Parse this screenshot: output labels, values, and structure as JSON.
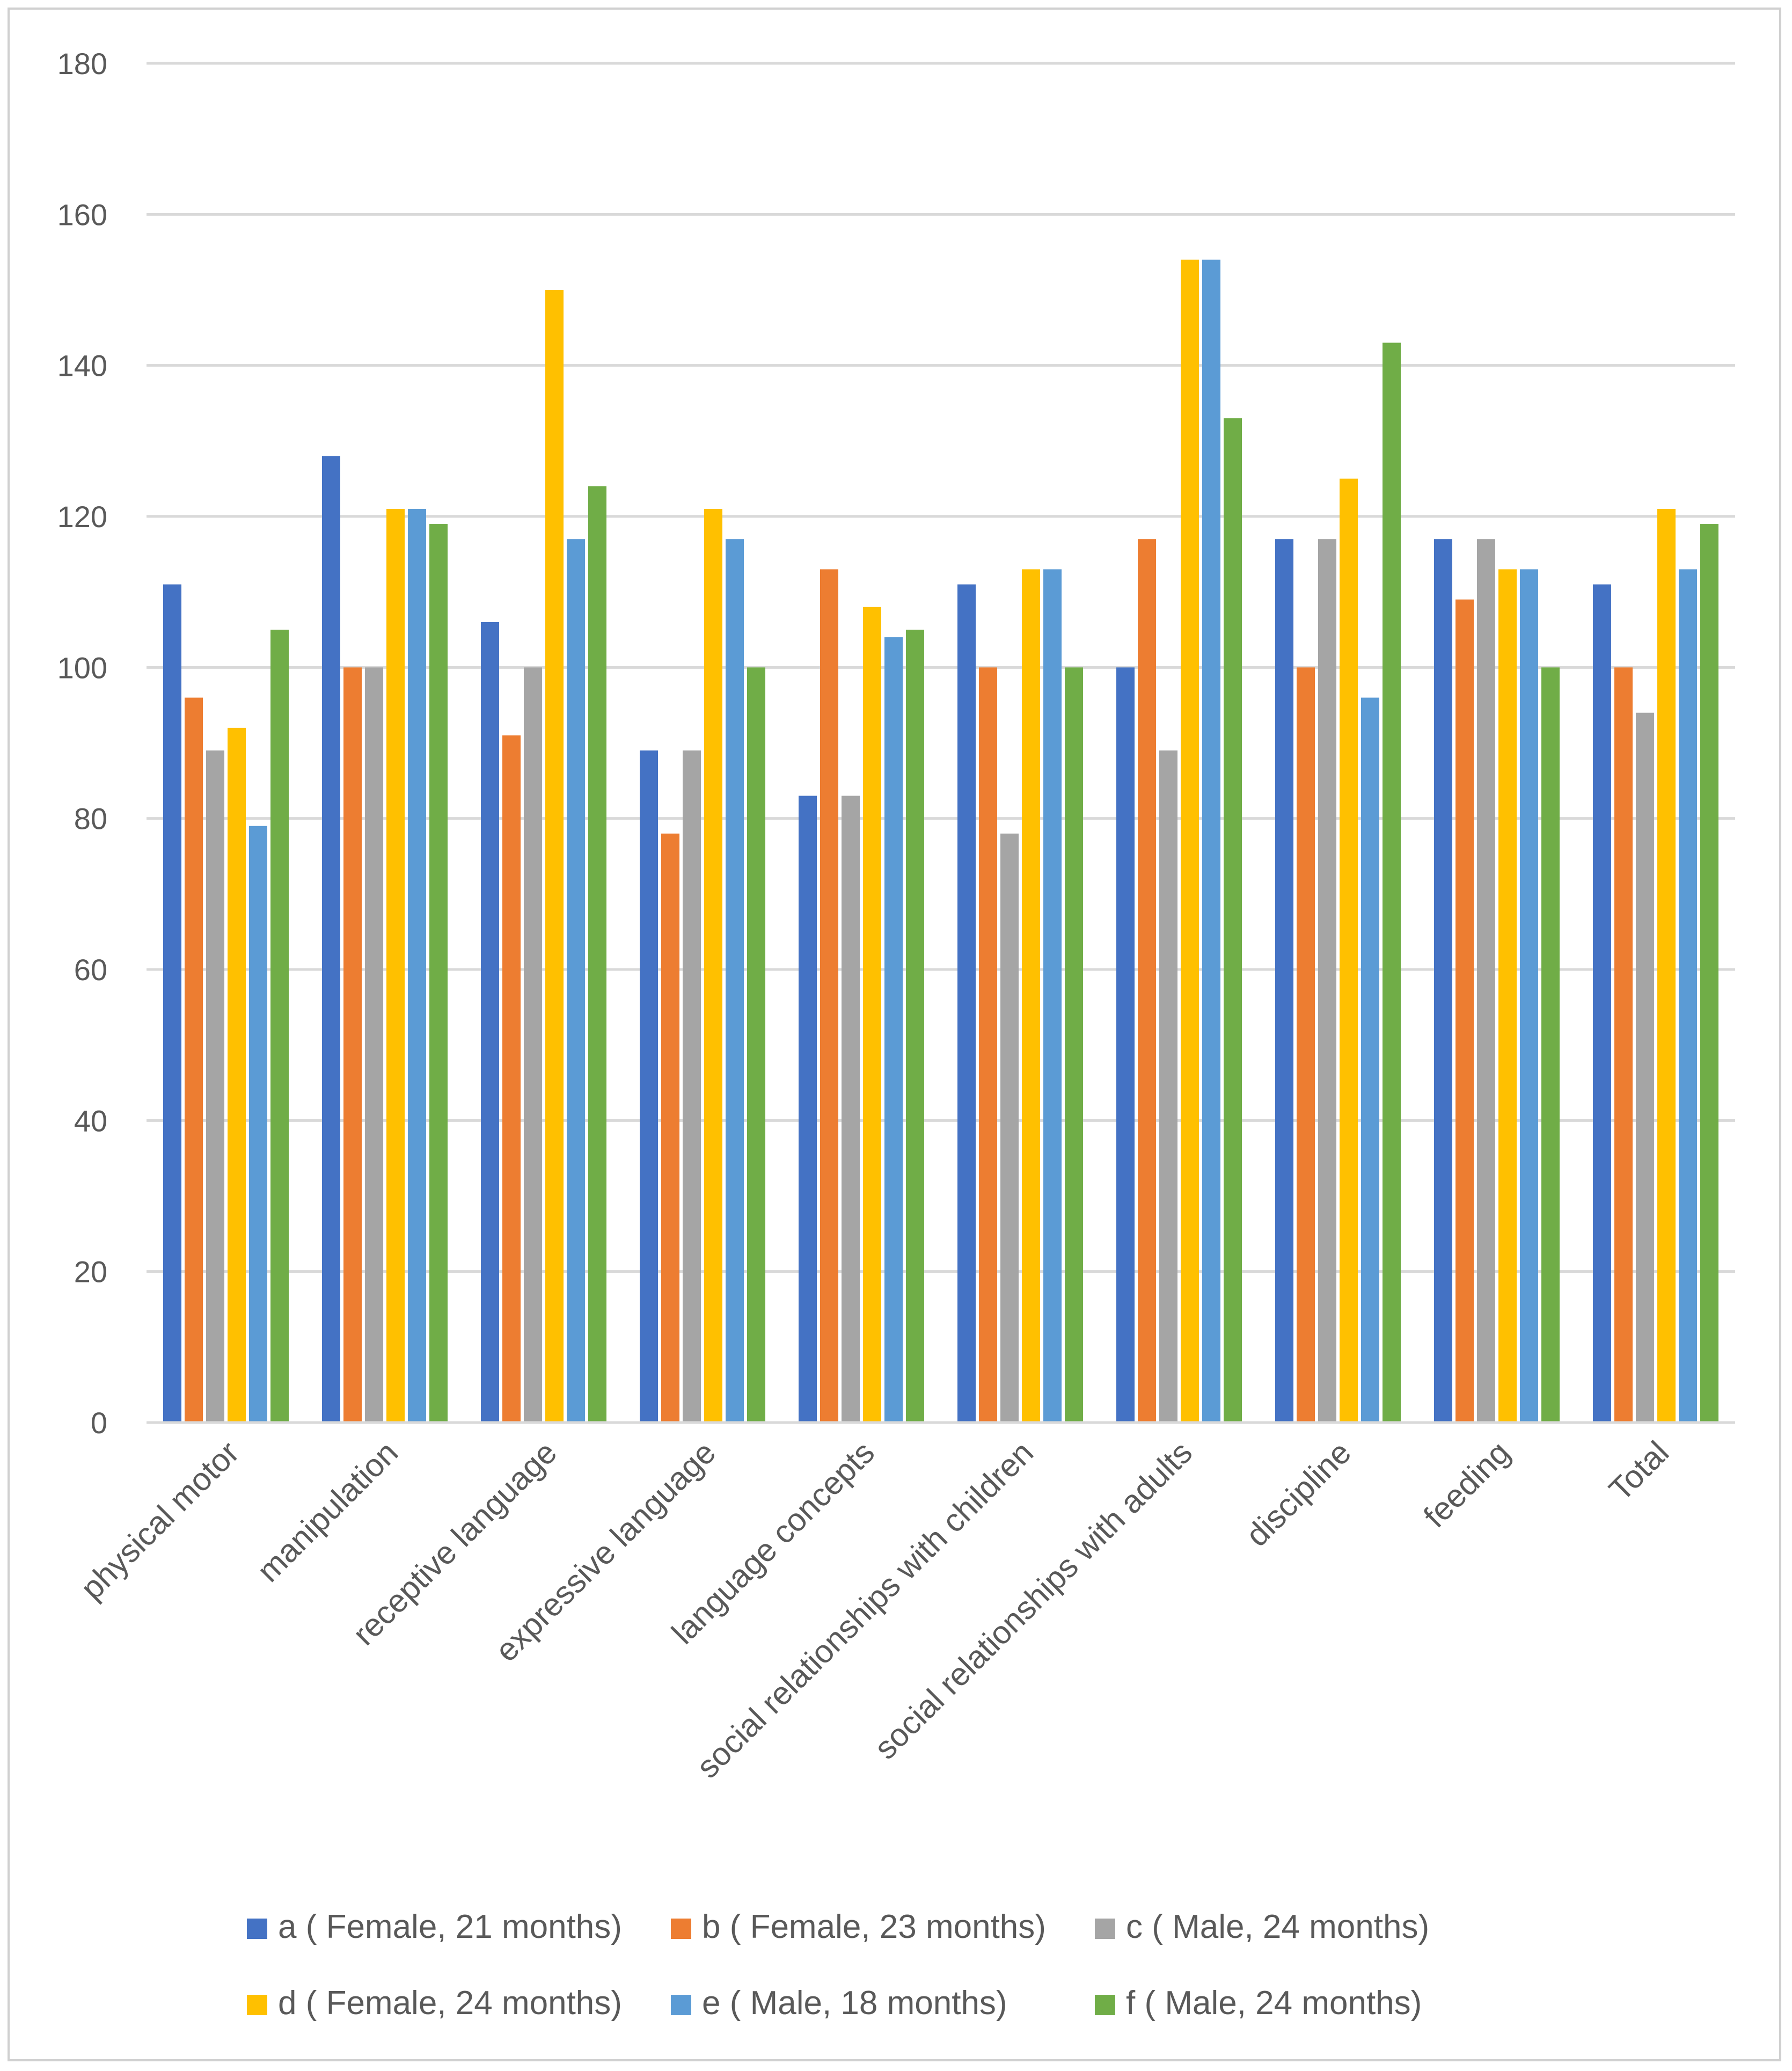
{
  "chart_data": {
    "type": "bar",
    "title": "",
    "xlabel": "",
    "ylabel": "",
    "ylim": [
      0,
      180
    ],
    "yticks": [
      0,
      20,
      40,
      60,
      80,
      100,
      120,
      140,
      160,
      180
    ],
    "grid": true,
    "legend_position": "bottom",
    "categories": [
      "physical motor",
      "manipulation",
      "receptive language",
      "expressive language",
      "language concepts",
      "social relationships with children",
      "social relationships with adults",
      "discipline",
      "feeding",
      "Total"
    ],
    "series": [
      {
        "name": "a ( Female, 21 months)",
        "color": "#4472C4",
        "values": [
          111,
          128,
          106,
          89,
          83,
          111,
          100,
          117,
          117,
          111
        ]
      },
      {
        "name": "b ( Female, 23 months)",
        "color": "#ED7D31",
        "values": [
          96,
          100,
          91,
          78,
          113,
          100,
          117,
          100,
          109,
          100
        ]
      },
      {
        "name": "c ( Male, 24 months)",
        "color": "#A5A5A5",
        "values": [
          89,
          100,
          100,
          89,
          83,
          78,
          89,
          117,
          117,
          94
        ]
      },
      {
        "name": "d ( Female, 24 months)",
        "color": "#FFC000",
        "values": [
          92,
          121,
          150,
          121,
          108,
          113,
          154,
          125,
          113,
          121
        ]
      },
      {
        "name": "e ( Male, 18 months)",
        "color": "#5B9BD5",
        "values": [
          79,
          121,
          117,
          117,
          104,
          113,
          154,
          96,
          113,
          113
        ]
      },
      {
        "name": "f ( Male, 24 months)",
        "color": "#70AD47",
        "values": [
          105,
          119,
          124,
          100,
          105,
          100,
          133,
          143,
          100,
          119
        ]
      }
    ]
  }
}
